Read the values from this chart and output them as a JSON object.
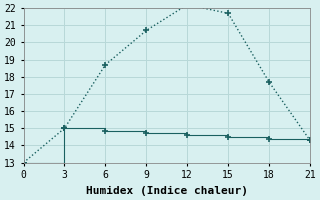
{
  "xlabel": "Humidex (Indice chaleur)",
  "bg_color": "#d8f0f0",
  "grid_color": "#b8d8d8",
  "line_color": "#1a6060",
  "line1_x": [
    0,
    3,
    6,
    9,
    12,
    15,
    18,
    21
  ],
  "line1_y": [
    13,
    15,
    18.7,
    20.7,
    22.2,
    21.7,
    17.7,
    14.3
  ],
  "line2_x": [
    0,
    3,
    6,
    9,
    12,
    15,
    18,
    21
  ],
  "line2_y": [
    13,
    15,
    14.85,
    14.75,
    14.6,
    14.5,
    14.35,
    14.3
  ],
  "xlim": [
    0,
    21
  ],
  "ylim": [
    13,
    22
  ],
  "xticks": [
    0,
    3,
    6,
    9,
    12,
    15,
    18,
    21
  ],
  "yticks": [
    13,
    14,
    15,
    16,
    17,
    18,
    19,
    20,
    21,
    22
  ],
  "xlabel_fontsize": 8,
  "tick_fontsize": 7
}
